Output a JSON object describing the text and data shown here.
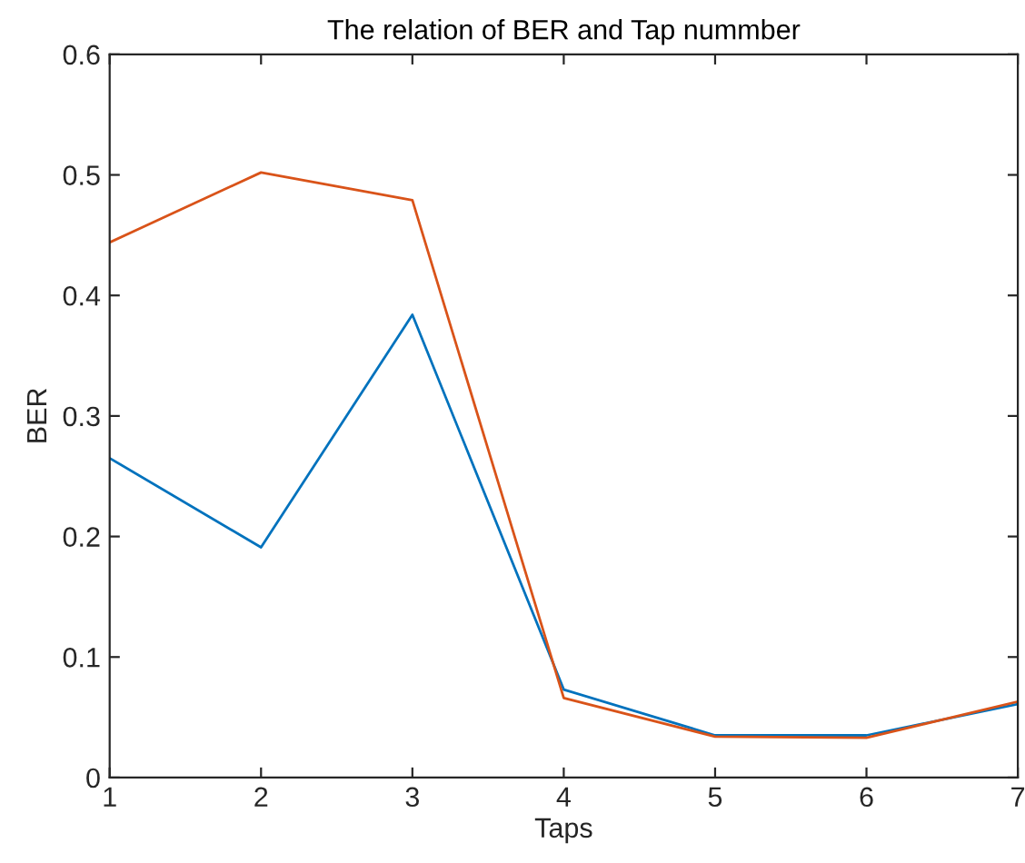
{
  "chart_data": {
    "type": "line",
    "title": "The relation of BER and Tap nummber",
    "xlabel": "Taps",
    "ylabel": "BER",
    "x": [
      1,
      2,
      3,
      4,
      5,
      6,
      7
    ],
    "series": [
      {
        "color": "#0072bd",
        "values": [
          0.265,
          0.191,
          0.384,
          0.073,
          0.035,
          0.035,
          0.061
        ]
      },
      {
        "color": "#d95319",
        "values": [
          0.444,
          0.502,
          0.479,
          0.066,
          0.034,
          0.033,
          0.063
        ]
      }
    ],
    "xlim": [
      1,
      7
    ],
    "xticks": [
      1,
      2,
      3,
      4,
      5,
      6,
      7
    ],
    "ylim": [
      0,
      0.6
    ],
    "yticks": [
      0,
      0.1,
      0.2,
      0.3,
      0.4,
      0.5,
      0.6
    ],
    "grid": false,
    "legend": false,
    "marker": "none",
    "line_style": "solid"
  }
}
